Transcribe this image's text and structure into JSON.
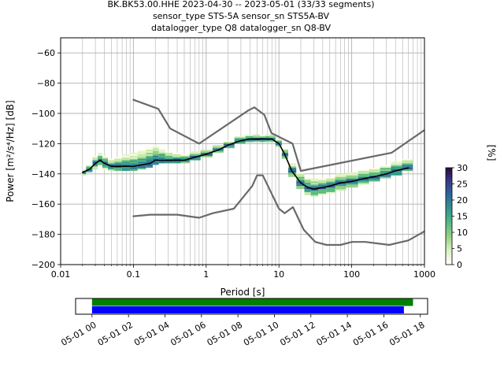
{
  "title_lines": [
    "BK.BK53.00.HHE   2023-04-30 -- 2023-05-01  (33/33 segments)",
    "sensor_type STS-5A sensor_sn STS5A-BV",
    "datalogger_type Q8 datalogger_sn Q8-BV"
  ],
  "chart_data": [
    {
      "type": "heatmap",
      "title": "BK.BK53.00.HHE   2023-04-30 -- 2023-05-01  (33/33 segments)",
      "xlabel": "Period [s]",
      "ylabel": "Power [m²/s⁴/Hz] [dB]",
      "x_scale": "log",
      "xlim": [
        0.01,
        1000
      ],
      "ylim": [
        -200,
        -50
      ],
      "x_ticks": [
        0.01,
        0.1,
        1,
        10,
        100,
        1000
      ],
      "x_tick_labels": [
        "0.01",
        "0.1",
        "1",
        "10",
        "100",
        "1000"
      ],
      "y_ticks": [
        -200,
        -180,
        -160,
        -140,
        -120,
        -100,
        -80,
        -60
      ],
      "y_tick_labels": [
        "−200",
        "−180",
        "−160",
        "−140",
        "−120",
        "−100",
        "−80",
        "−60"
      ],
      "grid": true,
      "colorbar": {
        "label": "[%]",
        "range": [
          0,
          30
        ],
        "ticks": [
          0,
          5,
          10,
          15,
          20,
          25,
          30
        ],
        "tick_labels": [
          "0",
          "5",
          "10",
          "15",
          "20",
          "25",
          "30"
        ]
      },
      "mean_curve": {
        "period": [
          0.02,
          0.025,
          0.03,
          0.035,
          0.04,
          0.05,
          0.06,
          0.08,
          0.1,
          0.13,
          0.17,
          0.2,
          0.25,
          0.3,
          0.4,
          0.5,
          0.7,
          1,
          1.5,
          2,
          3,
          4,
          5,
          6,
          7,
          8,
          10,
          12,
          15,
          20,
          25,
          30,
          40,
          50,
          70,
          100,
          150,
          200,
          300,
          400,
          600
        ],
        "db": [
          -139,
          -137,
          -133,
          -131,
          -133,
          -135,
          -135,
          -135,
          -135,
          -134,
          -133,
          -131,
          -131,
          -131,
          -131,
          -131,
          -129,
          -127,
          -124,
          -121,
          -118,
          -117,
          -117,
          -117,
          -117,
          -117,
          -120,
          -127,
          -138,
          -146,
          -149,
          -150,
          -149,
          -148,
          -146,
          -145,
          -143,
          -142,
          -140,
          -138,
          -136
        ]
      },
      "nhnm": {
        "period": [
          0.1,
          0.22,
          0.32,
          0.8,
          3.8,
          4.6,
          6.3,
          7.9,
          15.4,
          20,
          354.8,
          1000
        ],
        "db": [
          -91,
          -97,
          -110,
          -120,
          -98,
          -96,
          -101,
          -113,
          -120,
          -138,
          -126,
          -111
        ]
      },
      "nlnm": {
        "period": [
          0.1,
          0.17,
          0.4,
          0.8,
          1.24,
          2.4,
          4.3,
          5,
          6,
          10,
          12,
          15.6,
          21.9,
          31.6,
          45,
          70,
          101,
          154,
          328,
          600,
          1000
        ],
        "db": [
          -168,
          -167,
          -167,
          -169,
          -166,
          -163,
          -148,
          -141,
          -141,
          -163,
          -166,
          -162,
          -177,
          -185,
          -187,
          -187,
          -185,
          -185,
          -187,
          -184,
          -178
        ]
      },
      "density_cells": {
        "period": [
          0.02,
          0.025,
          0.03,
          0.035,
          0.04,
          0.05,
          0.06,
          0.08,
          0.1,
          0.13,
          0.17,
          0.2,
          0.25,
          0.3,
          0.4,
          0.5,
          0.7,
          1,
          1.5,
          2,
          3,
          4,
          5,
          6,
          7,
          8,
          10,
          12,
          15,
          20,
          25,
          30,
          40,
          50,
          70,
          100,
          150,
          200,
          300,
          400,
          600
        ],
        "db_min": [
          -141,
          -139,
          -137,
          -136,
          -137,
          -138,
          -138,
          -138,
          -138,
          -137,
          -136,
          -134,
          -133,
          -133,
          -133,
          -133,
          -131,
          -129,
          -126,
          -123,
          -120,
          -119,
          -119,
          -119,
          -119,
          -119,
          -122,
          -130,
          -142,
          -150,
          -154,
          -155,
          -154,
          -153,
          -151,
          -149,
          -147,
          -145,
          -143,
          -141,
          -138
        ],
        "db_max": [
          -137,
          -134,
          -128,
          -126,
          -128,
          -130,
          -129,
          -127,
          -126,
          -124,
          -122,
          -121,
          -123,
          -125,
          -126,
          -127,
          -125,
          -124,
          -121,
          -118,
          -115,
          -114,
          -114,
          -114,
          -114,
          -114,
          -117,
          -123,
          -133,
          -139,
          -142,
          -143,
          -143,
          -142,
          -140,
          -139,
          -137,
          -136,
          -134,
          -132,
          -130
        ]
      }
    },
    {
      "type": "timeline",
      "x_ticks": [
        "05-01 00",
        "05-01 02",
        "05-01 04",
        "05-01 06",
        "05-01 08",
        "05-01 10",
        "05-01 12",
        "05-01 14",
        "05-01 16",
        "05-01 18"
      ],
      "bars": [
        {
          "color": "#008000",
          "start_hour": 0.0,
          "end_hour": 17.6
        },
        {
          "color": "#0000ff",
          "start_hour": 0.0,
          "end_hour": 17.1
        }
      ],
      "xlim_hours": [
        -0.9,
        18.4
      ]
    }
  ],
  "colors": {
    "nm_line": "#696969",
    "mean_line": "#000000",
    "grid": "#b0b0b0",
    "coverage": "#008000",
    "data_available": "#0000ff"
  }
}
